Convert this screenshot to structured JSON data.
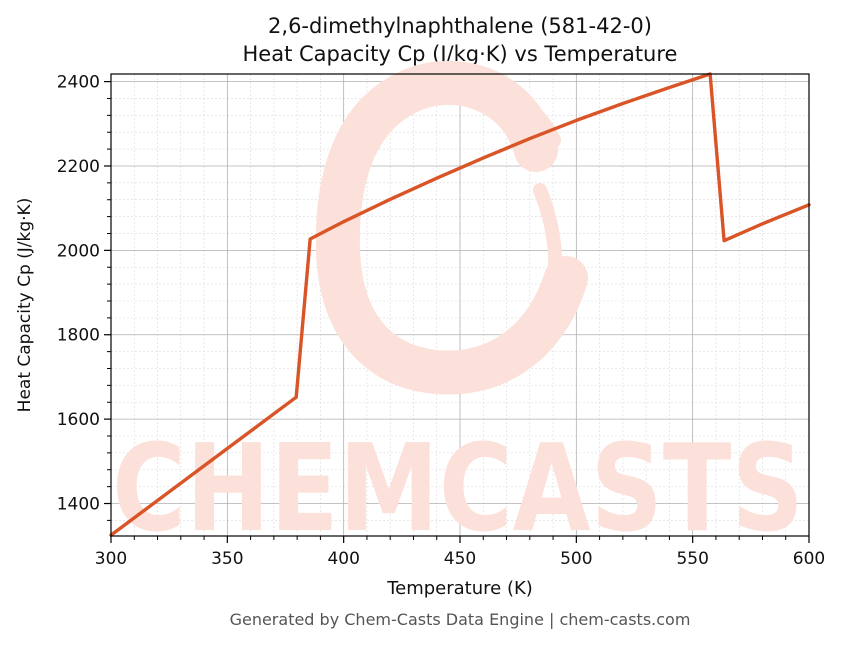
{
  "chart_data": {
    "type": "line",
    "title_line1": "2,6-dimethylnaphthalene (581-42-0)",
    "title_line2": "Heat Capacity Cp (J/kg·K) vs Temperature",
    "xlabel": "Temperature (K)",
    "ylabel": "Heat Capacity Cp (J/kg·K)",
    "xlim": [
      300,
      600
    ],
    "ylim": [
      1323,
      2418
    ],
    "x_ticks": [
      300,
      350,
      400,
      450,
      500,
      550,
      600
    ],
    "y_ticks": [
      1400,
      1600,
      1800,
      2000,
      2200,
      2400
    ],
    "x_minor_step": 10,
    "y_minor_step": 40,
    "grid": true,
    "line_color": "#d95427",
    "series": [
      {
        "x": [
          300,
          379.6,
          385.6,
          400,
          420,
          440,
          460,
          480,
          500,
          520,
          540,
          557.5,
          563.5,
          580,
          600
        ],
        "y": [
          1325,
          1652,
          2027,
          2068,
          2121,
          2171,
          2219,
          2265,
          2308,
          2348,
          2386,
          2418,
          2023,
          2063,
          2108
        ]
      }
    ]
  },
  "watermark": {
    "text": "CHEMCASTS",
    "color": "#fce1da"
  },
  "footer": {
    "text": "Generated by Chem-Casts Data Engine | chem-casts.com"
  }
}
